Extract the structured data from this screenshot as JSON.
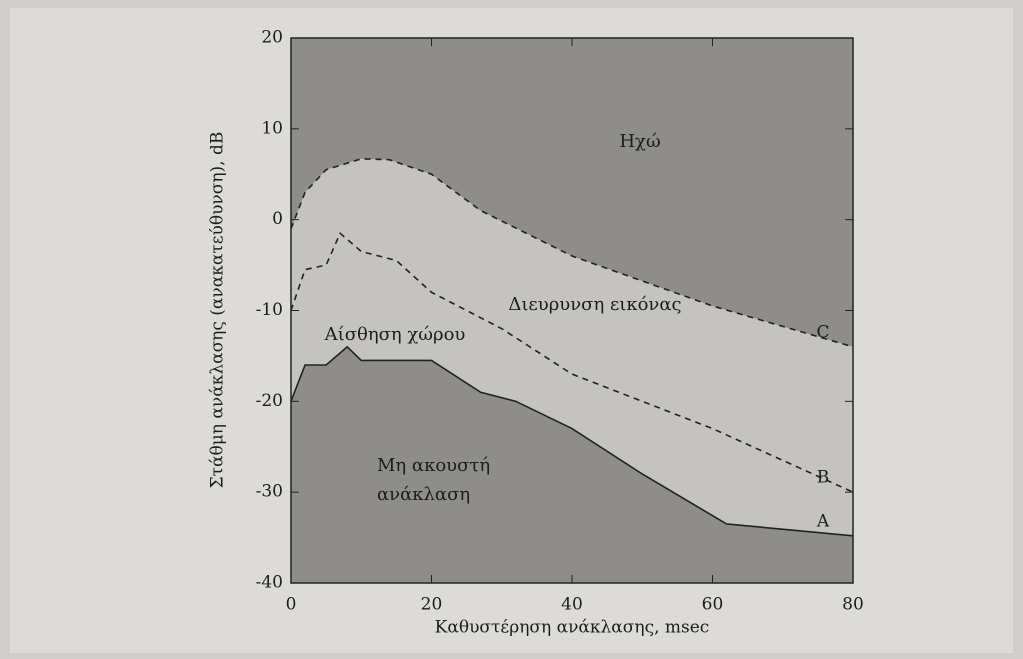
{
  "chart_data": {
    "type": "line",
    "xlabel": "Καθυστέρηση ανάκλασης, msec",
    "ylabel": "Στάθμη ανάκλασης (ανακατεύθυνση), dB",
    "xlim": [
      0,
      80
    ],
    "ylim": [
      -40,
      20
    ],
    "xticks": [
      0,
      20,
      40,
      60,
      80
    ],
    "yticks": [
      -40,
      -30,
      -20,
      -10,
      0,
      10,
      20
    ],
    "annotations": [
      "Ηχώ",
      "Διευρυνση εικόνας",
      "Αίσθηση χώρου",
      "Μη ακουστή",
      "ανάκλαση"
    ],
    "series": [
      {
        "name": "A",
        "color": "#222222",
        "style": "solid",
        "fill": "below",
        "x": [
          0,
          2,
          5,
          8,
          10,
          20,
          27,
          32,
          40,
          50,
          62,
          80
        ],
        "values": [
          -20,
          -16,
          -16,
          -14,
          -15.5,
          -15.5,
          -19,
          -20,
          -23,
          -28,
          -33.5,
          -34.8
        ]
      },
      {
        "name": "B",
        "color": "#222222",
        "style": "dashed",
        "fill": "none",
        "x": [
          0,
          2,
          5,
          7,
          10,
          15,
          20,
          30,
          40,
          60,
          80
        ],
        "values": [
          -10,
          -5.5,
          -5,
          -1.5,
          -3.5,
          -4.5,
          -8,
          -12,
          -17,
          -23,
          -30
        ]
      },
      {
        "name": "C",
        "color": "#222222",
        "style": "dashed",
        "fill": "above",
        "x": [
          0,
          2,
          5,
          10,
          14,
          20,
          27,
          40,
          60,
          80
        ],
        "values": [
          -1,
          3,
          5.5,
          6.7,
          6.6,
          5,
          1,
          -4,
          -9.5,
          -14
        ]
      }
    ]
  }
}
